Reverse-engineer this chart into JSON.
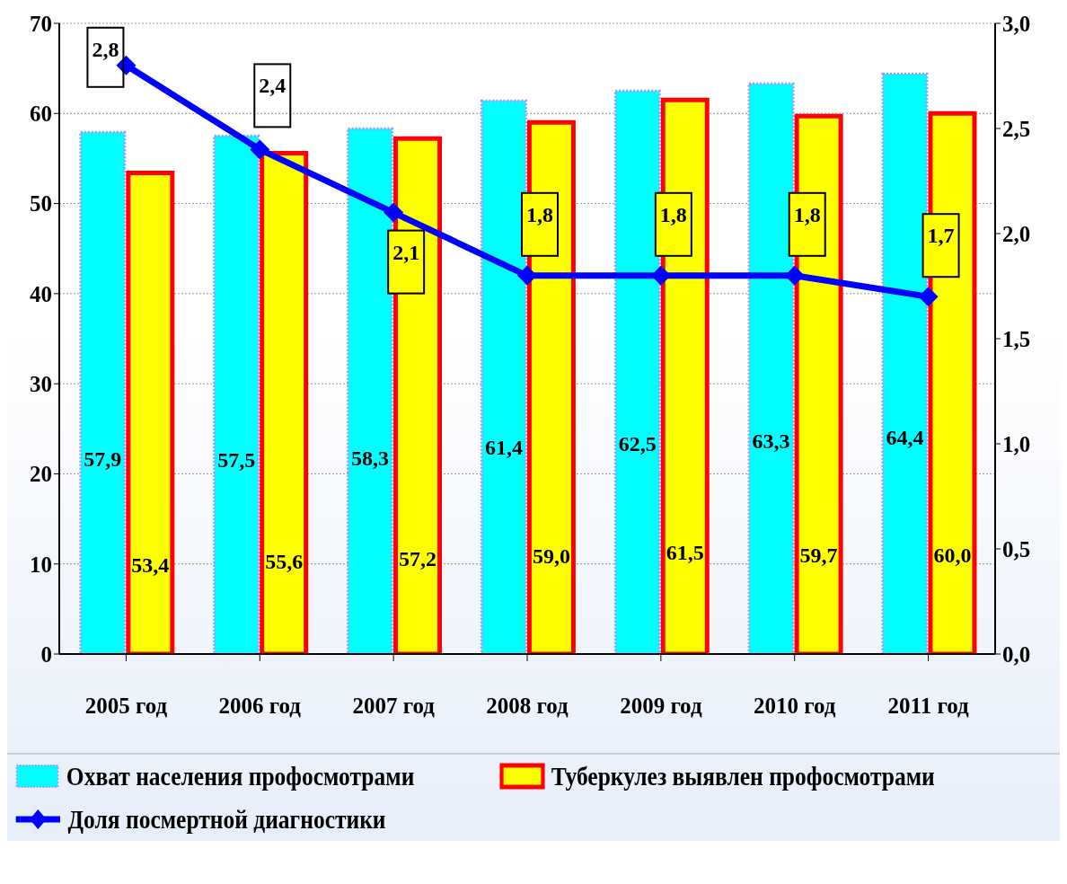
{
  "chart_data": {
    "type": "bar",
    "categories": [
      "2005 год",
      "2006 год",
      "2007 год",
      "2008 год",
      "2009 год",
      "2010 год",
      "2011 год"
    ],
    "series": [
      {
        "name": "Охват населения профосмотрами",
        "color": "#00ffff",
        "values": [
          57.9,
          57.5,
          58.3,
          61.4,
          62.5,
          63.3,
          64.4
        ],
        "value_labels": [
          "57,9",
          "57,5",
          "58,3",
          "61,4",
          "62,5",
          "63,3",
          "64,4"
        ]
      },
      {
        "name": "Туберкулез выявлен профосмотрами",
        "color": "#ffff00",
        "values": [
          53.4,
          55.6,
          57.2,
          59.0,
          61.5,
          59.7,
          60.0
        ],
        "value_labels": [
          "53,4",
          "55,6",
          "57,2",
          "59,0",
          "61,5",
          "59,7",
          "60,0"
        ]
      },
      {
        "name": "Доля посмертной диагностики",
        "type": "line",
        "axis": "y2",
        "color": "#0000ff",
        "values": [
          2.8,
          2.4,
          2.1,
          1.8,
          1.8,
          1.8,
          1.7
        ],
        "value_labels": [
          "2,8",
          "2,4",
          "2,1",
          "1,8",
          "1,8",
          "1,8",
          "1,7"
        ]
      }
    ],
    "ylim": [
      0,
      70
    ],
    "yticks": [
      0,
      10,
      20,
      30,
      40,
      50,
      60,
      70
    ],
    "y2lim": [
      0,
      3
    ],
    "y2ticks": [
      {
        "value": 0,
        "label": "0,0"
      },
      {
        "value": 0.5,
        "label": "0,5"
      },
      {
        "value": 1,
        "label": "1,0"
      },
      {
        "value": 1.5,
        "label": "1,5"
      },
      {
        "value": 2,
        "label": "2,0"
      },
      {
        "value": 2.5,
        "label": "2,5"
      },
      {
        "value": 3,
        "label": "3,0"
      }
    ],
    "grid": "y",
    "legend": "bottom",
    "marker": "diamond"
  }
}
